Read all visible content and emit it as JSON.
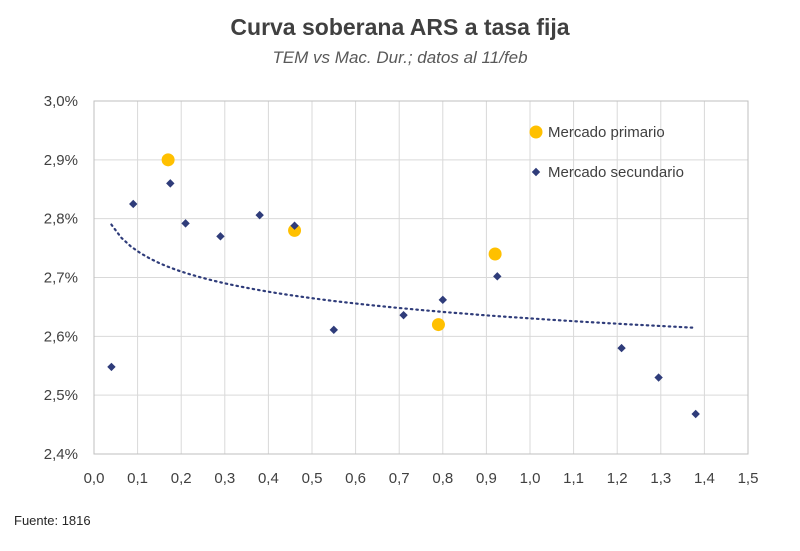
{
  "chart_data": {
    "type": "scatter",
    "title": "Curva soberana ARS a tasa fija",
    "subtitle": "TEM vs Mac. Dur.; datos al 11/feb",
    "xlabel": "",
    "ylabel": "",
    "xlim": [
      0.0,
      1.5
    ],
    "ylim": [
      2.4,
      3.0
    ],
    "x_ticks": [
      0.0,
      0.1,
      0.2,
      0.3,
      0.4,
      0.5,
      0.6,
      0.7,
      0.8,
      0.9,
      1.0,
      1.1,
      1.2,
      1.3,
      1.4,
      1.5
    ],
    "x_tick_labels": [
      "0,0",
      "0,1",
      "0,2",
      "0,3",
      "0,4",
      "0,5",
      "0,6",
      "0,7",
      "0,8",
      "0,9",
      "1,0",
      "1,1",
      "1,2",
      "1,3",
      "1,4",
      "1,5"
    ],
    "y_ticks": [
      2.4,
      2.5,
      2.6,
      2.7,
      2.8,
      2.9,
      3.0
    ],
    "y_tick_labels": [
      "2,4%",
      "2,5%",
      "2,6%",
      "2,7%",
      "2,8%",
      "2,9%",
      "3,0%"
    ],
    "grid": true,
    "legend_position": "top-right",
    "series": [
      {
        "name": "Mercado primario",
        "color": "#FFC000",
        "marker": "circle",
        "points": [
          {
            "x": 0.17,
            "y": 2.9
          },
          {
            "x": 0.46,
            "y": 2.78
          },
          {
            "x": 0.79,
            "y": 2.62
          },
          {
            "x": 0.92,
            "y": 2.74
          }
        ]
      },
      {
        "name": "Mercado secundario",
        "color": "#2F3C7A",
        "marker": "diamond",
        "points": [
          {
            "x": 0.04,
            "y": 2.548
          },
          {
            "x": 0.09,
            "y": 2.825
          },
          {
            "x": 0.175,
            "y": 2.86
          },
          {
            "x": 0.21,
            "y": 2.792
          },
          {
            "x": 0.29,
            "y": 2.77
          },
          {
            "x": 0.38,
            "y": 2.806
          },
          {
            "x": 0.46,
            "y": 2.788
          },
          {
            "x": 0.55,
            "y": 2.611
          },
          {
            "x": 0.71,
            "y": 2.636
          },
          {
            "x": 0.8,
            "y": 2.662
          },
          {
            "x": 0.925,
            "y": 2.702
          },
          {
            "x": 1.21,
            "y": 2.58
          },
          {
            "x": 1.295,
            "y": 2.53
          },
          {
            "x": 1.38,
            "y": 2.468
          }
        ]
      }
    ],
    "trendline": {
      "type": "logarithmic",
      "style": "dotted",
      "color": "#2F3C7A",
      "x_range": [
        0.04,
        1.38
      ],
      "a": 2.6305,
      "b": -0.0495
    }
  },
  "source": "Fuente: 1816"
}
